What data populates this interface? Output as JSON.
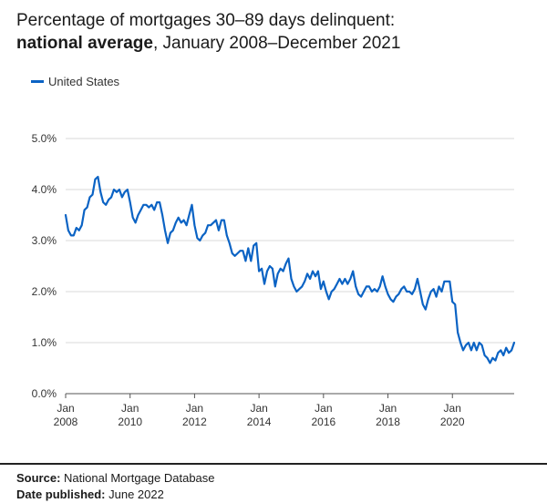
{
  "title": {
    "line1": "Percentage of mortgages 30–89 days delinquent:",
    "line2_bold": "national average",
    "line2_rest": ", January 2008–December 2021"
  },
  "footer": {
    "source_label": "Source:",
    "source_value": " National Mortgage Database",
    "date_label": "Date published:",
    "date_value": " June 2022"
  },
  "colors": {
    "series": "#0b63c4",
    "grid": "#d9d9d9",
    "axis": "#555555"
  },
  "chart_data": {
    "type": "line",
    "title": "Percentage of mortgages 30–89 days delinquent: national average, January 2008–December 2021",
    "xlabel": "",
    "ylabel": "",
    "legend_position": "top-left",
    "grid": true,
    "xlim": [
      "2008-01",
      "2021-12"
    ],
    "ylim": [
      0,
      5
    ],
    "y_ticks": [
      "0.0%",
      "1.0%",
      "2.0%",
      "3.0%",
      "4.0%",
      "5.0%"
    ],
    "x_ticks": [
      {
        "month": "2008-01",
        "line1": "Jan",
        "line2": "2008"
      },
      {
        "month": "2010-01",
        "line1": "Jan",
        "line2": "2010"
      },
      {
        "month": "2012-01",
        "line1": "Jan",
        "line2": "2012"
      },
      {
        "month": "2014-01",
        "line1": "Jan",
        "line2": "2014"
      },
      {
        "month": "2016-01",
        "line1": "Jan",
        "line2": "2016"
      },
      {
        "month": "2018-01",
        "line1": "Jan",
        "line2": "2018"
      },
      {
        "month": "2020-01",
        "line1": "Jan",
        "line2": "2020"
      }
    ],
    "series": [
      {
        "name": "United States",
        "start": "2008-01",
        "values": [
          3.5,
          3.2,
          3.1,
          3.1,
          3.25,
          3.2,
          3.3,
          3.6,
          3.65,
          3.85,
          3.9,
          4.2,
          4.25,
          3.95,
          3.75,
          3.7,
          3.8,
          3.85,
          4.0,
          3.95,
          4.0,
          3.85,
          3.95,
          4.0,
          3.75,
          3.45,
          3.35,
          3.5,
          3.6,
          3.7,
          3.7,
          3.65,
          3.7,
          3.6,
          3.75,
          3.75,
          3.5,
          3.2,
          2.95,
          3.15,
          3.2,
          3.35,
          3.45,
          3.35,
          3.4,
          3.3,
          3.5,
          3.7,
          3.3,
          3.05,
          3.0,
          3.1,
          3.15,
          3.3,
          3.3,
          3.35,
          3.4,
          3.2,
          3.4,
          3.4,
          3.1,
          2.95,
          2.75,
          2.7,
          2.75,
          2.8,
          2.8,
          2.6,
          2.85,
          2.6,
          2.9,
          2.95,
          2.4,
          2.45,
          2.15,
          2.4,
          2.5,
          2.45,
          2.1,
          2.35,
          2.45,
          2.4,
          2.55,
          2.65,
          2.25,
          2.1,
          2.0,
          2.05,
          2.1,
          2.2,
          2.35,
          2.25,
          2.4,
          2.3,
          2.4,
          2.05,
          2.2,
          2.0,
          1.85,
          2.0,
          2.05,
          2.15,
          2.25,
          2.15,
          2.25,
          2.15,
          2.25,
          2.4,
          2.1,
          1.95,
          1.9,
          2.0,
          2.1,
          2.1,
          2.0,
          2.05,
          2.0,
          2.1,
          2.3,
          2.1,
          1.95,
          1.85,
          1.8,
          1.9,
          1.95,
          2.05,
          2.1,
          2.0,
          2.0,
          1.95,
          2.05,
          2.25,
          2.0,
          1.75,
          1.65,
          1.85,
          2.0,
          2.05,
          1.9,
          2.1,
          2.0,
          2.2,
          2.2,
          2.2,
          1.8,
          1.75,
          1.2,
          1.0,
          0.85,
          0.95,
          1.0,
          0.85,
          1.0,
          0.85,
          1.0,
          0.95,
          0.75,
          0.7,
          0.6,
          0.7,
          0.65,
          0.8,
          0.85,
          0.75,
          0.9,
          0.8,
          0.85,
          1.0
        ]
      }
    ]
  }
}
